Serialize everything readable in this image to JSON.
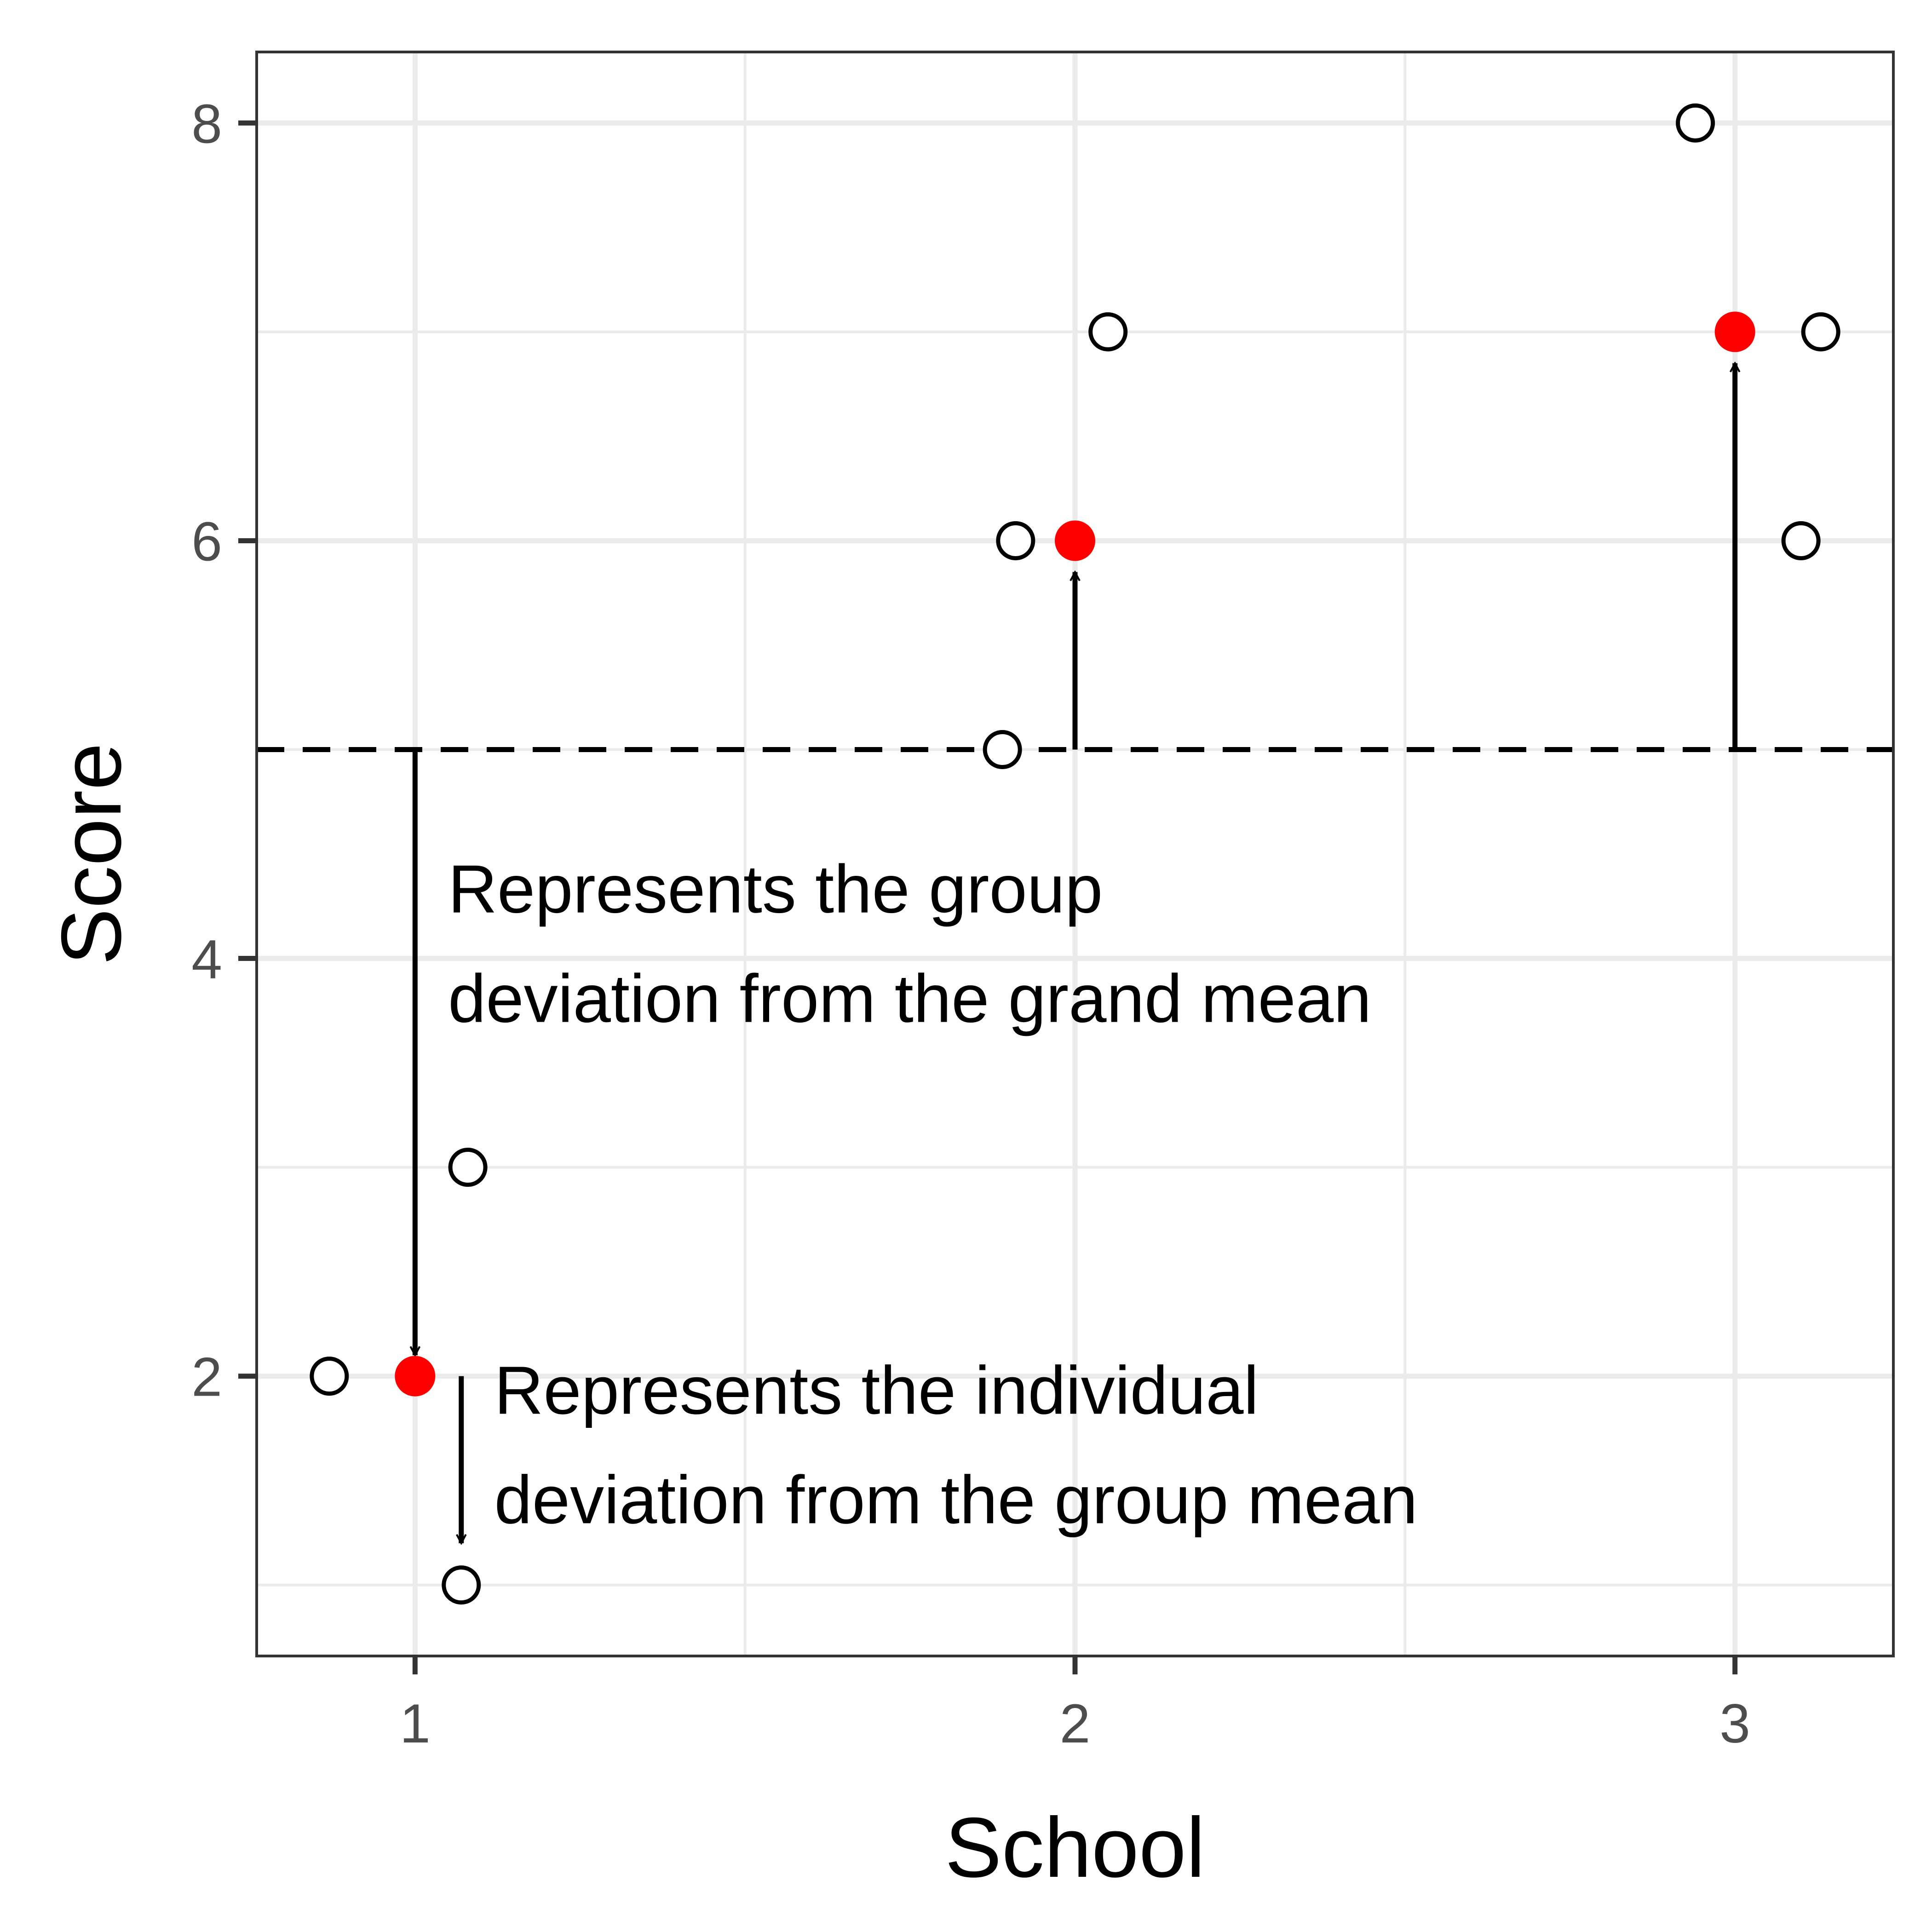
{
  "chart_data": {
    "type": "scatter",
    "title": "",
    "xlabel": "School",
    "ylabel": "Score",
    "xlim": [
      0.76,
      3.24
    ],
    "ylim": [
      0.66,
      8.34
    ],
    "x_ticks": [
      1,
      2,
      3
    ],
    "y_ticks": [
      2,
      4,
      6,
      8
    ],
    "grid": true,
    "legend": "none",
    "grand_mean": 5,
    "individual_scores": [
      {
        "x": 0.87,
        "y": 2
      },
      {
        "x": 1.08,
        "y": 3
      },
      {
        "x": 1.07,
        "y": 1
      },
      {
        "x": 1.89,
        "y": 5
      },
      {
        "x": 1.91,
        "y": 6
      },
      {
        "x": 2.05,
        "y": 7
      },
      {
        "x": 2.94,
        "y": 8
      },
      {
        "x": 3.13,
        "y": 7
      },
      {
        "x": 3.1,
        "y": 6
      }
    ],
    "group_means": [
      {
        "x": 1,
        "y": 2
      },
      {
        "x": 2,
        "y": 6
      },
      {
        "x": 3,
        "y": 7
      }
    ],
    "group_deviation_arrows": [
      {
        "x": 1,
        "from": 5,
        "to": 2.1
      },
      {
        "x": 2,
        "from": 5,
        "to": 5.85
      },
      {
        "x": 3,
        "from": 5,
        "to": 6.85
      }
    ],
    "individual_deviation_arrow": {
      "x": 1.07,
      "from": 2,
      "to": 1.2
    },
    "annotations": [
      {
        "id": "group",
        "x": 1.05,
        "y": 4.22,
        "lines": [
          "Represents the group",
          "deviation from the grand mean"
        ]
      },
      {
        "id": "individual",
        "x": 1.12,
        "y": 1.82,
        "lines": [
          "Represents the individual",
          "deviation from the group mean"
        ]
      }
    ],
    "colors": {
      "grid": "#ebebeb",
      "panel_border": "#333333",
      "point_outline": "#000000",
      "group_mean": "#ff0000",
      "arrow": "#000000"
    }
  }
}
